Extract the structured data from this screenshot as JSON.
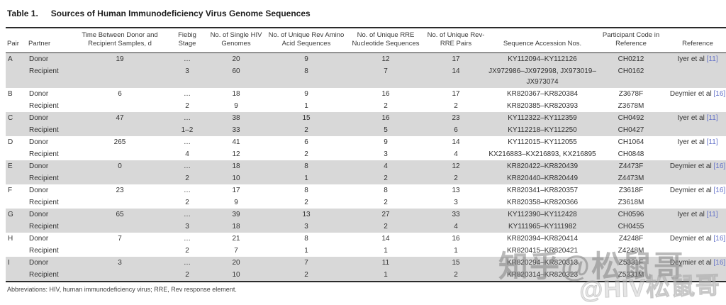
{
  "table": {
    "label": "Table 1.",
    "title": "Sources of Human Immunodeficiency Virus Genome Sequences",
    "columns": [
      "Pair",
      "Partner",
      "Time Between Donor and Recipient Samples, d",
      "Fiebig Stage",
      "No. of Single HIV Genomes",
      "No. of Unique Rev Amino Acid Sequences",
      "No. of Unique RRE Nucleotide Sequences",
      "No. of Unique Rev-RRE Pairs",
      "Sequence Accession Nos.",
      "Participant Code in Reference",
      "Reference"
    ],
    "footnote": "Abbreviations: HIV, human immunodeficiency virus; RRE, Rev response element."
  },
  "pairs": [
    {
      "pair": "A",
      "shaded": true,
      "rows": [
        {
          "partner": "Donor",
          "time": "19",
          "fiebig": "…",
          "genomes": "20",
          "rev_aa": "9",
          "rre_nt": "12",
          "rev_rre": "17",
          "accession": "KY112094–KY112126",
          "code": "CH0212",
          "ref": "Iyer et al",
          "ref_cite": "[11]"
        },
        {
          "partner": "Recipient",
          "time": "",
          "fiebig": "3",
          "genomes": "60",
          "rev_aa": "8",
          "rre_nt": "7",
          "rev_rre": "14",
          "accession": "JX972986–JX972998, JX973019– JX973074",
          "code": "CH0162",
          "ref": "",
          "ref_cite": ""
        }
      ]
    },
    {
      "pair": "B",
      "shaded": false,
      "rows": [
        {
          "partner": "Donor",
          "time": "6",
          "fiebig": "…",
          "genomes": "18",
          "rev_aa": "9",
          "rre_nt": "16",
          "rev_rre": "17",
          "accession": "KR820367–KR820384",
          "code": "Z3678F",
          "ref": "Deymier et al",
          "ref_cite": "[16]"
        },
        {
          "partner": "Recipient",
          "time": "",
          "fiebig": "2",
          "genomes": "9",
          "rev_aa": "1",
          "rre_nt": "2",
          "rev_rre": "2",
          "accession": "KR820385–KR820393",
          "code": "Z3678M",
          "ref": "",
          "ref_cite": ""
        }
      ]
    },
    {
      "pair": "C",
      "shaded": true,
      "rows": [
        {
          "partner": "Donor",
          "time": "47",
          "fiebig": "…",
          "genomes": "38",
          "rev_aa": "15",
          "rre_nt": "16",
          "rev_rre": "23",
          "accession": "KY112322–KY112359",
          "code": "CH0492",
          "ref": "Iyer et al",
          "ref_cite": "[11]"
        },
        {
          "partner": "Recipient",
          "time": "",
          "fiebig": "1–2",
          "genomes": "33",
          "rev_aa": "2",
          "rre_nt": "5",
          "rev_rre": "6",
          "accession": "KY112218–KY112250",
          "code": "CH0427",
          "ref": "",
          "ref_cite": ""
        }
      ]
    },
    {
      "pair": "D",
      "shaded": false,
      "rows": [
        {
          "partner": "Donor",
          "time": "265",
          "fiebig": "…",
          "genomes": "41",
          "rev_aa": "6",
          "rre_nt": "9",
          "rev_rre": "14",
          "accession": "KY112015–KY112055",
          "code": "CH1064",
          "ref": "Iyer et al",
          "ref_cite": "[11]"
        },
        {
          "partner": "Recipient",
          "time": "",
          "fiebig": "4",
          "genomes": "12",
          "rev_aa": "2",
          "rre_nt": "3",
          "rev_rre": "4",
          "accession": "KX216883–KX216893, KX216895",
          "code": "CH0848",
          "ref": "",
          "ref_cite": ""
        }
      ]
    },
    {
      "pair": "E",
      "shaded": true,
      "rows": [
        {
          "partner": "Donor",
          "time": "0",
          "fiebig": "…",
          "genomes": "18",
          "rev_aa": "8",
          "rre_nt": "4",
          "rev_rre": "12",
          "accession": "KR820422–KR820439",
          "code": "Z4473F",
          "ref": "Deymier et al",
          "ref_cite": "[16]"
        },
        {
          "partner": "Recipient",
          "time": "",
          "fiebig": "2",
          "genomes": "10",
          "rev_aa": "1",
          "rre_nt": "2",
          "rev_rre": "2",
          "accession": "KR820440–KR820449",
          "code": "Z4473M",
          "ref": "",
          "ref_cite": ""
        }
      ]
    },
    {
      "pair": "F",
      "shaded": false,
      "rows": [
        {
          "partner": "Donor",
          "time": "23",
          "fiebig": "…",
          "genomes": "17",
          "rev_aa": "8",
          "rre_nt": "8",
          "rev_rre": "13",
          "accession": "KR820341–KR820357",
          "code": "Z3618F",
          "ref": "Deymier et al",
          "ref_cite": "[16]"
        },
        {
          "partner": "Recipient",
          "time": "",
          "fiebig": "2",
          "genomes": "9",
          "rev_aa": "2",
          "rre_nt": "2",
          "rev_rre": "3",
          "accession": "KR820358–KR820366",
          "code": "Z3618M",
          "ref": "",
          "ref_cite": ""
        }
      ]
    },
    {
      "pair": "G",
      "shaded": true,
      "rows": [
        {
          "partner": "Donor",
          "time": "65",
          "fiebig": "…",
          "genomes": "39",
          "rev_aa": "13",
          "rre_nt": "27",
          "rev_rre": "33",
          "accession": "KY112390–KY112428",
          "code": "CH0596",
          "ref": "Iyer et al",
          "ref_cite": "[11]"
        },
        {
          "partner": "Recipient",
          "time": "",
          "fiebig": "3",
          "genomes": "18",
          "rev_aa": "3",
          "rre_nt": "2",
          "rev_rre": "4",
          "accession": "KY111965–KY111982",
          "code": "CH0455",
          "ref": "",
          "ref_cite": ""
        }
      ]
    },
    {
      "pair": "H",
      "shaded": false,
      "rows": [
        {
          "partner": "Donor",
          "time": "7",
          "fiebig": "…",
          "genomes": "21",
          "rev_aa": "8",
          "rre_nt": "14",
          "rev_rre": "16",
          "accession": "KR820394–KR820414",
          "code": "Z4248F",
          "ref": "Deymier et al",
          "ref_cite": "[16]"
        },
        {
          "partner": "Recipient",
          "time": "",
          "fiebig": "2",
          "genomes": "7",
          "rev_aa": "1",
          "rre_nt": "1",
          "rev_rre": "1",
          "accession": "KR820415–KR820421",
          "code": "Z4248M",
          "ref": "",
          "ref_cite": ""
        }
      ]
    },
    {
      "pair": "I",
      "shaded": true,
      "rows": [
        {
          "partner": "Donor",
          "time": "3",
          "fiebig": "…",
          "genomes": "20",
          "rev_aa": "7",
          "rre_nt": "11",
          "rev_rre": "15",
          "accession": "KR820294–KR820313",
          "code": "Z5331F",
          "ref": "Deymier et al",
          "ref_cite": "[16]"
        },
        {
          "partner": "Recipient",
          "time": "",
          "fiebig": "2",
          "genomes": "10",
          "rev_aa": "2",
          "rre_nt": "1",
          "rev_rre": "2",
          "accession": "KR820314–KR820323",
          "code": "Z5331M",
          "ref": "",
          "ref_cite": ""
        }
      ]
    }
  ],
  "watermark": {
    "line1": "知乎@松鼠哥",
    "line2": "@HIV松鼠哥"
  },
  "colors": {
    "stripe": "#d8d8d8",
    "citation_blue": "#6472c8",
    "rule": "#2b2b2b",
    "text": "#3a3a3a"
  }
}
